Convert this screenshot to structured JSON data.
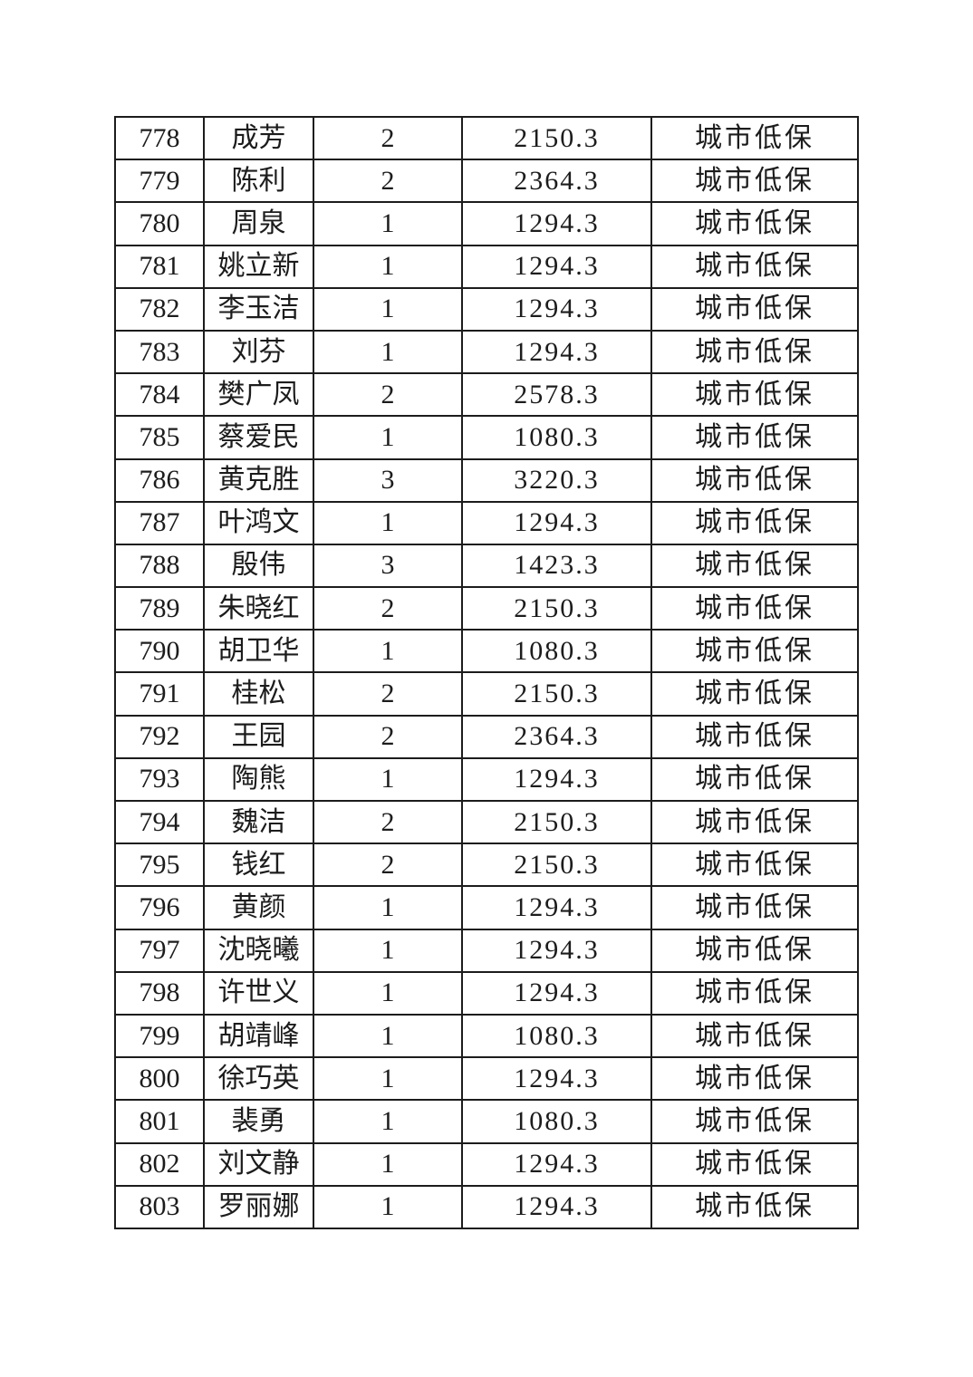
{
  "table": {
    "category_color": "#1c1c1c",
    "rows": [
      {
        "no": "778",
        "name": "成芳",
        "count": "2",
        "amount": "2150.3",
        "category": "城市低保"
      },
      {
        "no": "779",
        "name": "陈利",
        "count": "2",
        "amount": "2364.3",
        "category": "城市低保"
      },
      {
        "no": "780",
        "name": "周泉",
        "count": "1",
        "amount": "1294.3",
        "category": "城市低保"
      },
      {
        "no": "781",
        "name": "姚立新",
        "count": "1",
        "amount": "1294.3",
        "category": "城市低保"
      },
      {
        "no": "782",
        "name": "李玉洁",
        "count": "1",
        "amount": "1294.3",
        "category": "城市低保"
      },
      {
        "no": "783",
        "name": "刘芬",
        "count": "1",
        "amount": "1294.3",
        "category": "城市低保"
      },
      {
        "no": "784",
        "name": "樊广凤",
        "count": "2",
        "amount": "2578.3",
        "category": "城市低保"
      },
      {
        "no": "785",
        "name": "蔡爱民",
        "count": "1",
        "amount": "1080.3",
        "category": "城市低保"
      },
      {
        "no": "786",
        "name": "黄克胜",
        "count": "3",
        "amount": "3220.3",
        "category": "城市低保"
      },
      {
        "no": "787",
        "name": "叶鸿文",
        "count": "1",
        "amount": "1294.3",
        "category": "城市低保"
      },
      {
        "no": "788",
        "name": "殷伟",
        "count": "3",
        "amount": "1423.3",
        "category": "城市低保"
      },
      {
        "no": "789",
        "name": "朱晓红",
        "count": "2",
        "amount": "2150.3",
        "category": "城市低保"
      },
      {
        "no": "790",
        "name": "胡卫华",
        "count": "1",
        "amount": "1080.3",
        "category": "城市低保"
      },
      {
        "no": "791",
        "name": "桂松",
        "count": "2",
        "amount": "2150.3",
        "category": "城市低保"
      },
      {
        "no": "792",
        "name": "王园",
        "count": "2",
        "amount": "2364.3",
        "category": "城市低保"
      },
      {
        "no": "793",
        "name": "陶熊",
        "count": "1",
        "amount": "1294.3",
        "category": "城市低保"
      },
      {
        "no": "794",
        "name": "魏洁",
        "count": "2",
        "amount": "2150.3",
        "category": "城市低保"
      },
      {
        "no": "795",
        "name": "钱红",
        "count": "2",
        "amount": "2150.3",
        "category": "城市低保"
      },
      {
        "no": "796",
        "name": "黄颜",
        "count": "1",
        "amount": "1294.3",
        "category": "城市低保"
      },
      {
        "no": "797",
        "name": "沈晓曦",
        "count": "1",
        "amount": "1294.3",
        "category": "城市低保"
      },
      {
        "no": "798",
        "name": "许世义",
        "count": "1",
        "amount": "1294.3",
        "category": "城市低保"
      },
      {
        "no": "799",
        "name": "胡靖峰",
        "count": "1",
        "amount": "1080.3",
        "category": "城市低保"
      },
      {
        "no": "800",
        "name": "徐巧英",
        "count": "1",
        "amount": "1294.3",
        "category": "城市低保"
      },
      {
        "no": "801",
        "name": "裴勇",
        "count": "1",
        "amount": "1080.3",
        "category": "城市低保"
      },
      {
        "no": "802",
        "name": "刘文静",
        "count": "1",
        "amount": "1294.3",
        "category": "城市低保"
      },
      {
        "no": "803",
        "name": "罗丽娜",
        "count": "1",
        "amount": "1294.3",
        "category": "城市低保"
      }
    ]
  }
}
